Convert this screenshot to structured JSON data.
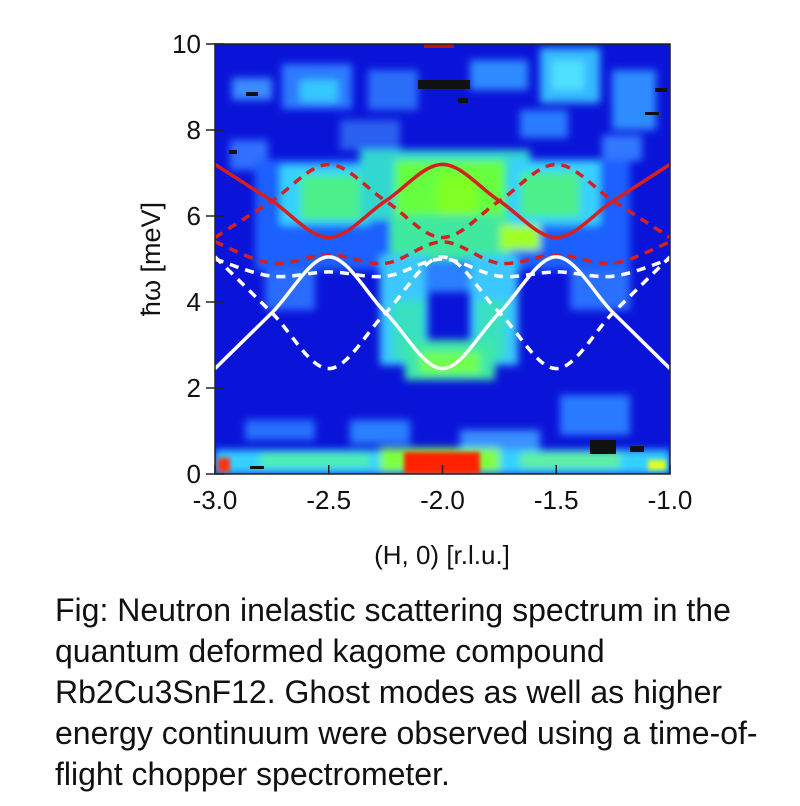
{
  "chart_data": {
    "type": "heatmap",
    "xlabel": "(H, 0) [r.l.u.]",
    "ylabel": "ħω [meV]",
    "xlim": [
      -3.0,
      -1.0
    ],
    "ylim": [
      0,
      10
    ],
    "x_ticks": [
      "-3.0",
      "-2.5",
      "-2.0",
      "-1.5",
      "-1.0"
    ],
    "y_ticks": [
      "0",
      "2",
      "4",
      "6",
      "8",
      "10"
    ],
    "colormap": [
      "#0000c8",
      "#0050ff",
      "#00c8ff",
      "#00ff80",
      "#80ff00",
      "#ff0000",
      "#000000"
    ],
    "intensity_features": [
      {
        "feature": "elastic line",
        "energy_meV": 0.3,
        "H_range": [
          -3.0,
          -1.0
        ]
      },
      {
        "feature": "strong elastic peak",
        "energy_meV": 0.3,
        "H_range": [
          -2.15,
          -1.85
        ]
      },
      {
        "feature": "higher energy continuum",
        "energy_range_meV": [
          5.0,
          7.0
        ],
        "H_range": [
          -2.6,
          -1.4
        ]
      },
      {
        "feature": "mode dip",
        "energy_meV": 2.5,
        "H_range": [
          -2.2,
          -1.8
        ]
      }
    ],
    "series": [
      {
        "color": "#d42020",
        "style": "solid",
        "x": [
          -3.0,
          -2.75,
          -2.5,
          -2.25,
          -2.0,
          -1.75,
          -1.5,
          -1.25,
          -1.0
        ],
        "y": [
          7.2,
          6.35,
          5.5,
          6.35,
          7.2,
          6.35,
          5.5,
          6.35,
          7.2
        ]
      },
      {
        "color": "#d42020",
        "style": "dashed",
        "x": [
          -3.0,
          -2.75,
          -2.5,
          -2.25,
          -2.0,
          -1.75,
          -1.5,
          -1.25,
          -1.0
        ],
        "y": [
          5.5,
          6.35,
          7.2,
          6.35,
          5.5,
          6.35,
          7.2,
          6.35,
          5.5
        ]
      },
      {
        "color": "#d42020",
        "style": "dashed",
        "x": [
          -3.0,
          -2.75,
          -2.5,
          -2.25,
          -2.0,
          -1.75,
          -1.5,
          -1.25,
          -1.0
        ],
        "y": [
          5.4,
          4.9,
          5.1,
          4.9,
          5.4,
          4.9,
          5.1,
          4.9,
          5.4
        ]
      },
      {
        "color": "#ffffff",
        "style": "solid",
        "x": [
          -3.0,
          -2.75,
          -2.5,
          -2.25,
          -2.0,
          -1.75,
          -1.5,
          -1.25,
          -1.0
        ],
        "y": [
          2.45,
          3.75,
          5.05,
          3.75,
          2.45,
          3.75,
          5.05,
          3.75,
          2.45
        ]
      },
      {
        "color": "#ffffff",
        "style": "dashed",
        "x": [
          -3.0,
          -2.75,
          -2.5,
          -2.25,
          -2.0,
          -1.75,
          -1.5,
          -1.25,
          -1.0
        ],
        "y": [
          5.05,
          3.75,
          2.45,
          3.75,
          5.05,
          3.75,
          2.45,
          3.75,
          5.05
        ]
      },
      {
        "color": "#ffffff",
        "style": "dashed",
        "x": [
          -3.0,
          -2.75,
          -2.5,
          -2.25,
          -2.0,
          -1.75,
          -1.5,
          -1.25,
          -1.0
        ],
        "y": [
          5.0,
          4.6,
          4.7,
          4.6,
          5.0,
          4.6,
          4.7,
          4.6,
          5.0
        ]
      }
    ]
  },
  "caption": "Fig: Neutron inelastic scattering spectrum in the quantum deformed kagome compound Rb2Cu3SnF12.  Ghost modes as well as higher energy continuum were observed using a time-of-flight chopper spectrometer."
}
